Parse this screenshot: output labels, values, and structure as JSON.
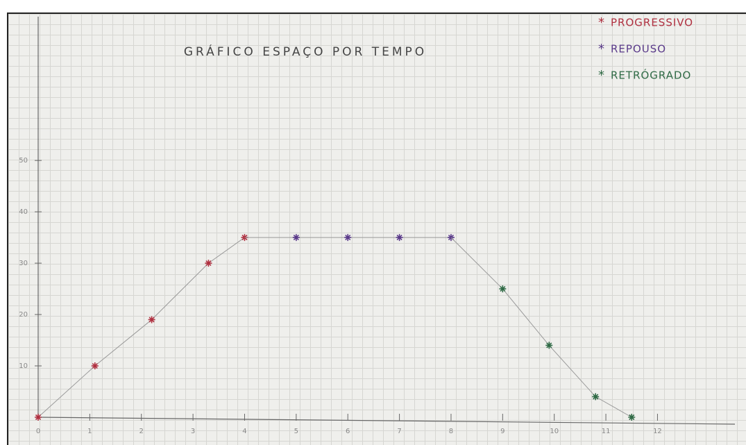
{
  "chart_data": {
    "type": "scatter",
    "title": "GRÁFICO ESPAÇO POR TEMPO",
    "series": [
      {
        "name": "PROGRESSIVO",
        "color": "#b03040",
        "x": [
          0,
          1.1,
          2.2,
          3.3,
          4
        ],
        "values": [
          0,
          10,
          19,
          30,
          35
        ]
      },
      {
        "name": "REPOUSO",
        "color": "#5a3a8a",
        "x": [
          5,
          6,
          7,
          8
        ],
        "values": [
          35,
          35,
          35,
          35
        ]
      },
      {
        "name": "RETRÓGRADO",
        "color": "#2f6a45",
        "x": [
          9,
          9.9,
          10.8,
          11.5
        ],
        "values": [
          25,
          14,
          4,
          0
        ]
      }
    ],
    "xlim": [
      0,
      13.5
    ],
    "ylim": [
      0,
      78
    ],
    "xticks": [
      0,
      1,
      2,
      3,
      4,
      5,
      6,
      7,
      8,
      9,
      10,
      11,
      12
    ],
    "yticks": [
      10,
      20,
      30,
      40,
      50
    ]
  }
}
